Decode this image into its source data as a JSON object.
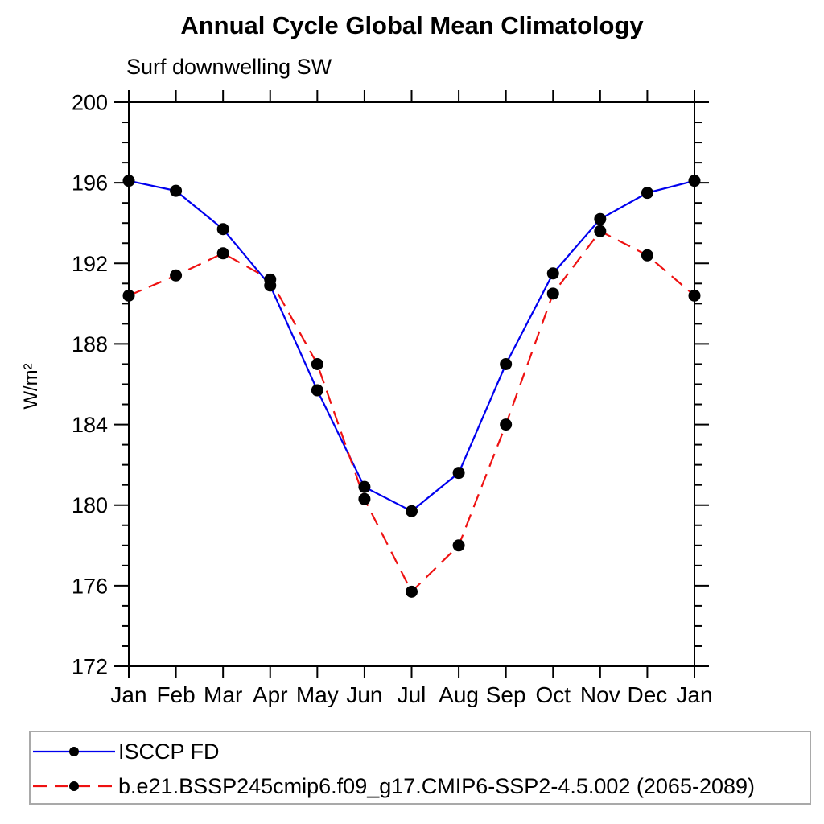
{
  "chart_data": {
    "type": "line",
    "title": "Annual Cycle Global Mean Climatology",
    "subtitle": "Surf downwelling SW",
    "ylabel": "W/m²",
    "xlabel": "",
    "ylim": [
      172,
      200
    ],
    "ytick_step": 4,
    "yminor_step": 1,
    "grid": false,
    "legend_position": "bottom",
    "axis_color": "#000000",
    "marker_color": "#000000",
    "categories": [
      "Jan",
      "Feb",
      "Mar",
      "Apr",
      "May",
      "Jun",
      "Jul",
      "Aug",
      "Sep",
      "Oct",
      "Nov",
      "Dec",
      "Jan"
    ],
    "yticks": [
      172,
      176,
      180,
      184,
      188,
      192,
      196,
      200
    ],
    "series": [
      {
        "name": "ISCCP FD",
        "color": "#0000ee",
        "style": "solid",
        "values": [
          196.1,
          195.6,
          193.7,
          190.9,
          185.7,
          180.9,
          179.7,
          181.6,
          187.0,
          191.5,
          194.2,
          195.5,
          196.1
        ]
      },
      {
        "name": "b.e21.BSSP245cmip6.f09_g17.CMIP6-SSP2-4.5.002 (2065-2089)",
        "color": "#ee1111",
        "style": "dashed",
        "values": [
          190.4,
          191.4,
          192.5,
          191.2,
          187.0,
          180.3,
          175.7,
          178.0,
          184.0,
          190.5,
          193.6,
          192.4,
          190.4
        ]
      }
    ]
  }
}
